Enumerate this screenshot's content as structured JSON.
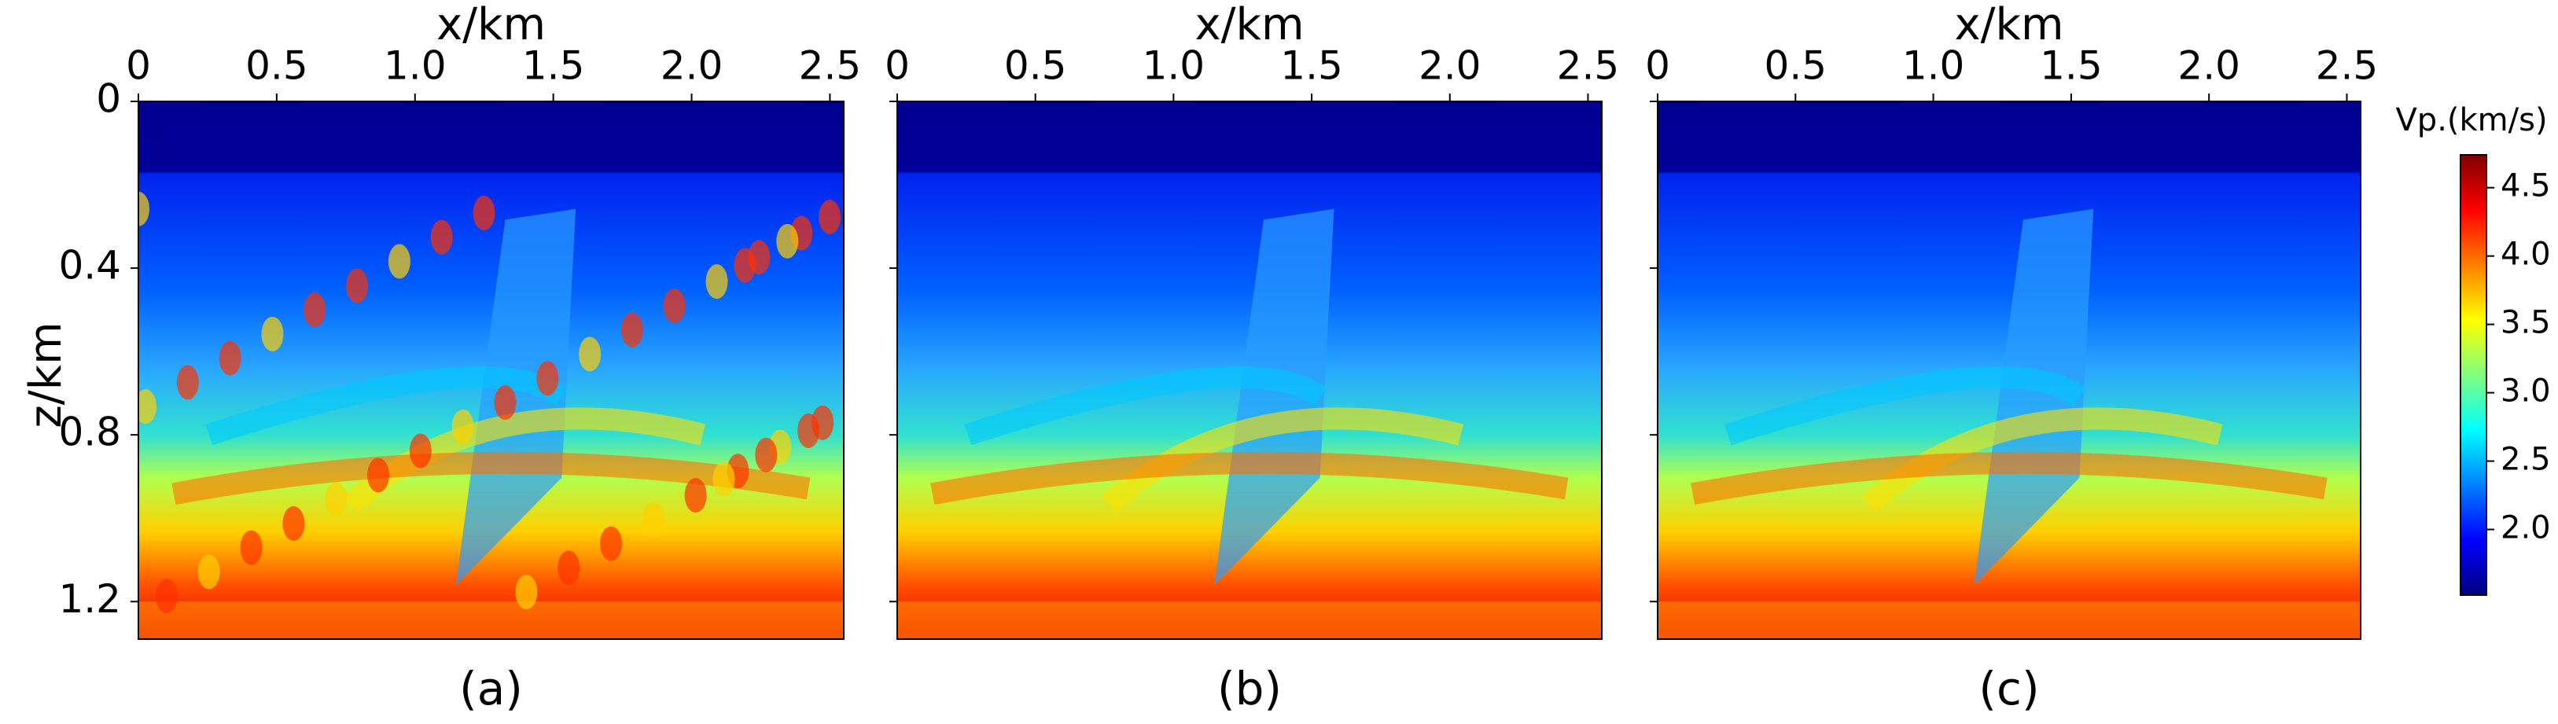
{
  "chart_data": [
    {
      "type": "heatmap",
      "xlabel": "x/km",
      "ylabel": "z/km",
      "caption": "(a)",
      "xlim": [
        0,
        2.55
      ],
      "xticks": [
        0,
        0.5,
        {
          "value": 1,
          "label": "1.0"
        },
        1.5,
        {
          "value": 2,
          "label": "2.0"
        },
        2.5
      ],
      "ylim": [
        0,
        1.29
      ],
      "yticks": [
        0,
        0.4,
        0.8,
        1.2
      ],
      "colormap": "jet"
    },
    {
      "type": "heatmap",
      "xlabel": "x/km",
      "caption": "(b)",
      "xlim": [
        0,
        2.55
      ],
      "xticks": [
        0,
        0.5,
        {
          "value": 1,
          "label": "1.0"
        },
        1.5,
        {
          "value": 2,
          "label": "2.0"
        },
        2.5
      ],
      "ylim": [
        0,
        1.29
      ],
      "yticks": [
        0,
        0.4,
        0.8,
        1.2
      ],
      "colormap": "jet"
    },
    {
      "type": "heatmap",
      "xlabel": "x/km",
      "caption": "(c)",
      "xlim": [
        0,
        2.55
      ],
      "xticks": [
        0,
        0.5,
        {
          "value": 1,
          "label": "1.0"
        },
        1.5,
        {
          "value": 2,
          "label": "2.0"
        },
        2.5
      ],
      "ylim": [
        0,
        1.29
      ],
      "yticks": [
        0,
        0.4,
        0.8,
        1.2
      ],
      "colormap": "jet"
    }
  ],
  "colorbar": {
    "label": "Vp.(km/s)",
    "clim": [
      1.52,
      4.74
    ],
    "ticks": [
      {
        "value": 2,
        "label": "2.0"
      },
      2.5,
      {
        "value": 3,
        "label": "3.0"
      },
      3.5,
      {
        "value": 4,
        "label": "4.0"
      },
      4.5
    ]
  }
}
